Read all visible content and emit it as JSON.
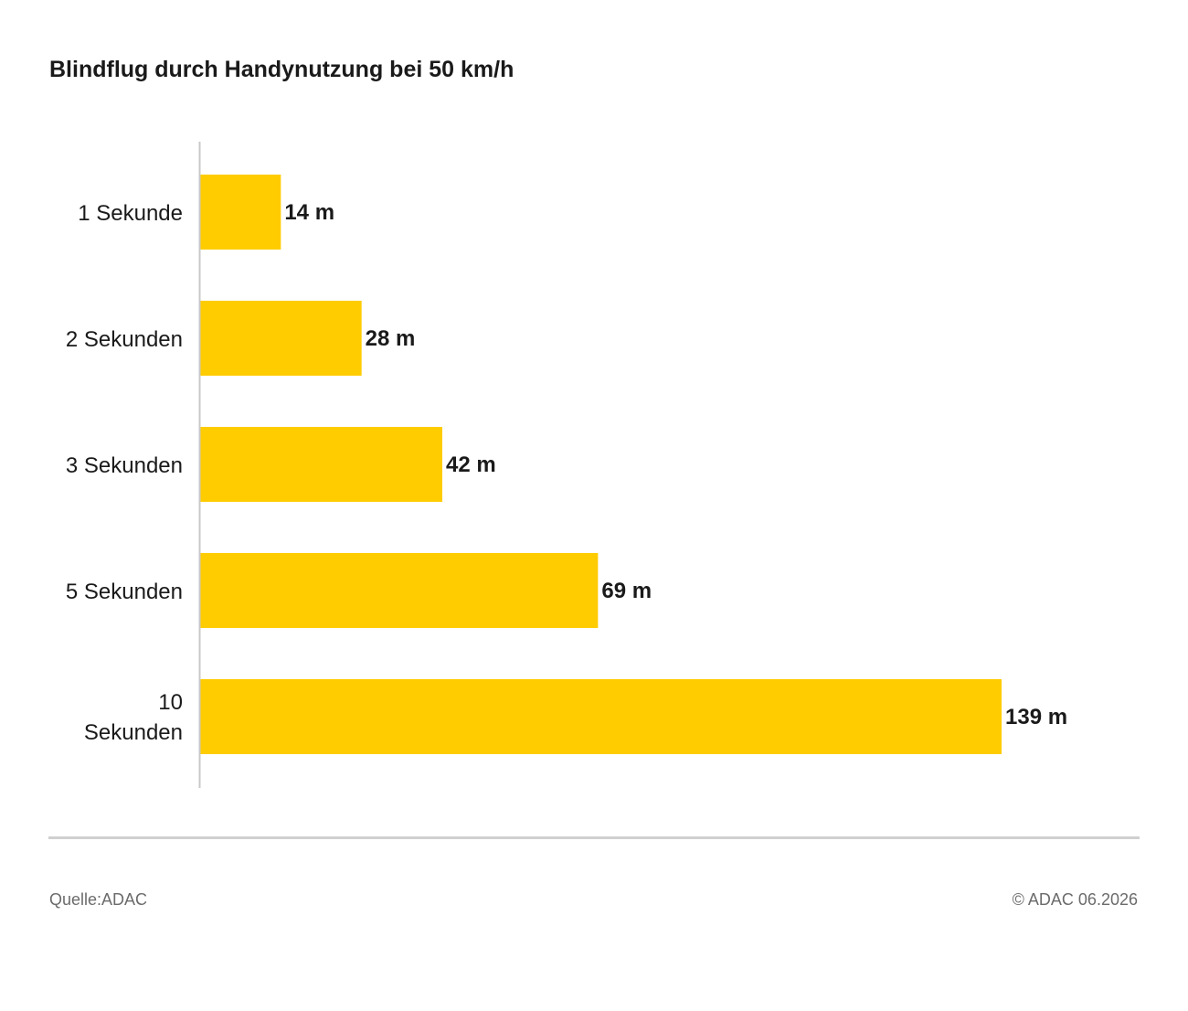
{
  "chart_data": {
    "type": "bar",
    "orientation": "horizontal",
    "title": "Blindflug durch Handynutzung bei 50 km/h",
    "categories": [
      "1 Sekunde",
      "2 Sekunden",
      "3 Sekunden",
      "5 Sekunden",
      "10 Sekunden"
    ],
    "values": [
      14,
      28,
      42,
      69,
      139
    ],
    "value_labels": [
      "14 m",
      "28 m",
      "42 m",
      "69 m",
      "139 m"
    ],
    "unit": "m",
    "xlabel": "",
    "ylabel": "",
    "grid": false,
    "legend": "none",
    "bar_color": "#FFCC00",
    "axis_color": "#c8c8c8"
  },
  "footer": {
    "source": "Quelle:ADAC",
    "copyright": "© ADAC 06.2026"
  }
}
